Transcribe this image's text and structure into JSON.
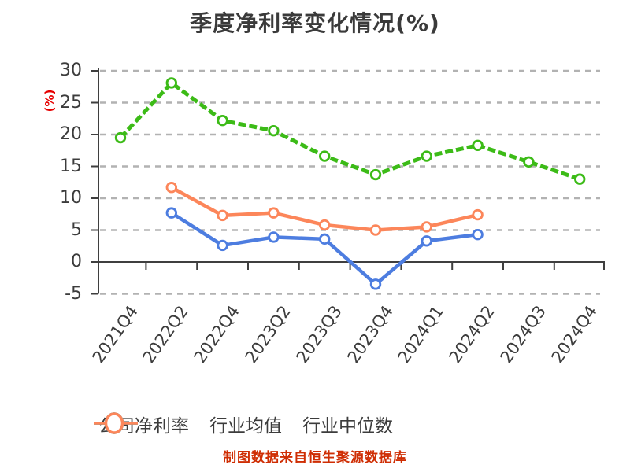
{
  "title": "季度净利率变化情况(%)",
  "y_axis": {
    "unit_label": "(%)",
    "ticks": [
      30,
      25,
      20,
      15,
      10,
      5,
      0,
      -5
    ]
  },
  "x_axis": {
    "categories": [
      "2021Q4",
      "2022Q2",
      "2022Q4",
      "2023Q2",
      "2023Q3",
      "2023Q4",
      "2024Q1",
      "2024Q2",
      "2024Q3",
      "2024Q4"
    ]
  },
  "footer": "制图数据来自恒生聚源数据库",
  "colors": {
    "company": "#3cbb17",
    "industry_mean": "#4d7de0",
    "industry_median": "#fc865a",
    "axis": "#3f3f3f",
    "text": "#3c3c3c",
    "gridline": "#b2b2b2",
    "unit_label": "#e60000",
    "footer": "#cf2e04",
    "marker_fill": "#ffffff"
  },
  "chart_data": {
    "type": "line",
    "title": "季度净利率变化情况(%)",
    "categories": [
      "2021Q4",
      "2022Q2",
      "2022Q4",
      "2023Q2",
      "2023Q3",
      "2023Q4",
      "2024Q1",
      "2024Q2",
      "2024Q3",
      "2024Q4"
    ],
    "series": [
      {
        "name": "公司净利率",
        "color": "#3cbb17",
        "line_style": "dashed",
        "values": [
          19.5,
          28.1,
          22.2,
          20.6,
          16.6,
          13.7,
          16.6,
          18.3,
          15.7,
          13.0
        ]
      },
      {
        "name": "行业均值",
        "color": "#4d7de0",
        "line_style": "solid",
        "values": [
          null,
          7.7,
          2.6,
          3.9,
          3.6,
          -3.5,
          3.3,
          4.3,
          null,
          null
        ]
      },
      {
        "name": "行业中位数",
        "color": "#fc865a",
        "line_style": "solid",
        "values": [
          null,
          11.7,
          7.3,
          7.7,
          5.8,
          5.0,
          5.5,
          7.4,
          null,
          null
        ]
      }
    ],
    "ylim": [
      -5,
      30
    ],
    "xlabel": "",
    "ylabel": "(%)",
    "grid": "horizontal-dashed",
    "legend_position": "bottom"
  }
}
